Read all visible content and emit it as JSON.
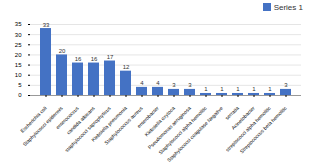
{
  "chart_data": {
    "type": "bar",
    "categories": [
      "Escherichia coli",
      "Staphylococci epidermis",
      "enterococcus",
      "candida albicans",
      "staphylococci saprophyticus",
      "Klebsiella pneumonia",
      "Staphylococcus aureus",
      "enterobacter",
      "Klebsiella oxytoca",
      "Pseudomonas aeruginosa",
      "Staphylococci alpha hemolitic",
      "Staphylococci coagulase Negative",
      "serratia",
      "Acinetobacter",
      "streptococci alpha hemolitic",
      "Streptococcus beta hemolitic"
    ],
    "series": [
      {
        "name": "Series 1",
        "color": "#4472c4",
        "values": [
          33,
          20,
          16,
          16,
          17,
          12,
          4,
          4,
          3,
          3,
          1,
          1,
          1,
          1,
          1,
          3
        ]
      }
    ],
    "ylim": [
      0,
      35
    ],
    "yticks": [
      0,
      5,
      10,
      15,
      20,
      25,
      30,
      35
    ],
    "grid": true,
    "data_labels": true,
    "legend": "right"
  }
}
